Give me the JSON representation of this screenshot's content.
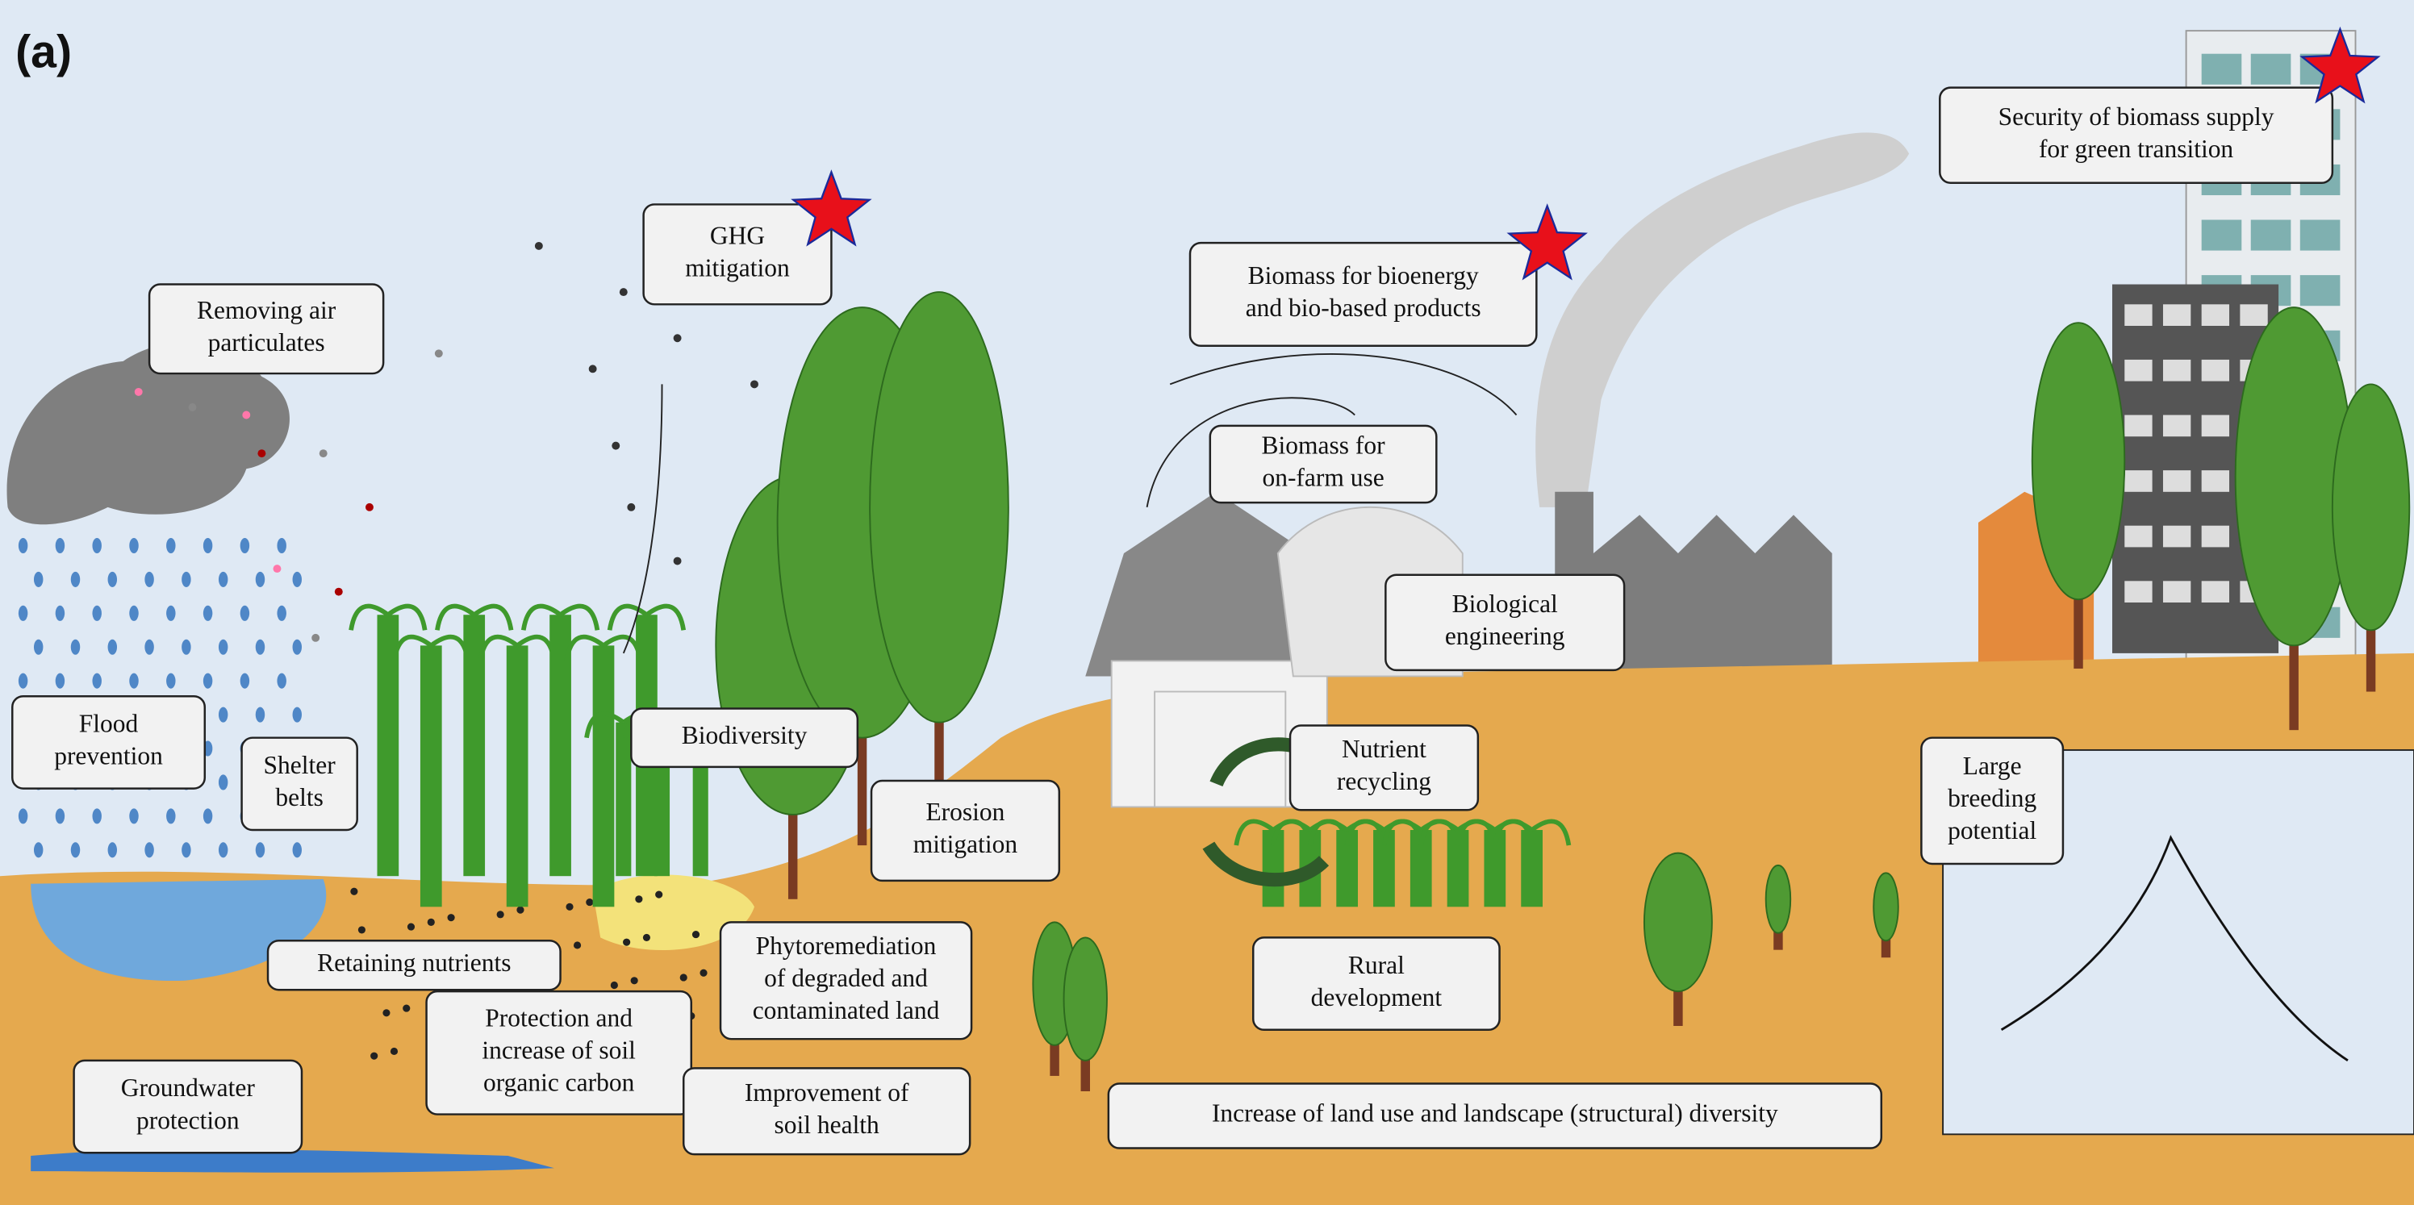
{
  "panel_label": "(a)",
  "labels": [
    {
      "lines": [
        "Removing air",
        "particulates"
      ]
    },
    {
      "lines": [
        "GHG",
        "mitigation"
      ]
    },
    {
      "lines": [
        "Biomass for bioenergy",
        "and bio-based products"
      ]
    },
    {
      "lines": [
        "Security of biomass supply",
        "for green transition"
      ]
    },
    {
      "lines": [
        "Biomass for",
        "on-farm use"
      ]
    },
    {
      "lines": [
        "Biological",
        "engineering"
      ]
    },
    {
      "lines": [
        "Flood",
        "prevention"
      ]
    },
    {
      "lines": [
        "Shelter",
        "belts"
      ]
    },
    {
      "lines": [
        "Biodiversity"
      ]
    },
    {
      "lines": [
        "Erosion",
        "mitigation"
      ]
    },
    {
      "lines": [
        "Nutrient",
        "recycling"
      ]
    },
    {
      "lines": [
        "Large",
        "breeding",
        "potential"
      ]
    },
    {
      "lines": [
        "Retaining nutrients"
      ]
    },
    {
      "lines": [
        "Phytoremediation",
        "of degraded and",
        "contaminated land"
      ]
    },
    {
      "lines": [
        "Rural",
        "development"
      ]
    },
    {
      "lines": [
        "Protection and",
        "increase of soil",
        "organic carbon"
      ]
    },
    {
      "lines": [
        "Improvement of",
        "soil health"
      ]
    },
    {
      "lines": [
        "Groundwater",
        "protection"
      ]
    },
    {
      "lines": [
        "Increase of land use and landscape (structural) diversity"
      ]
    }
  ]
}
